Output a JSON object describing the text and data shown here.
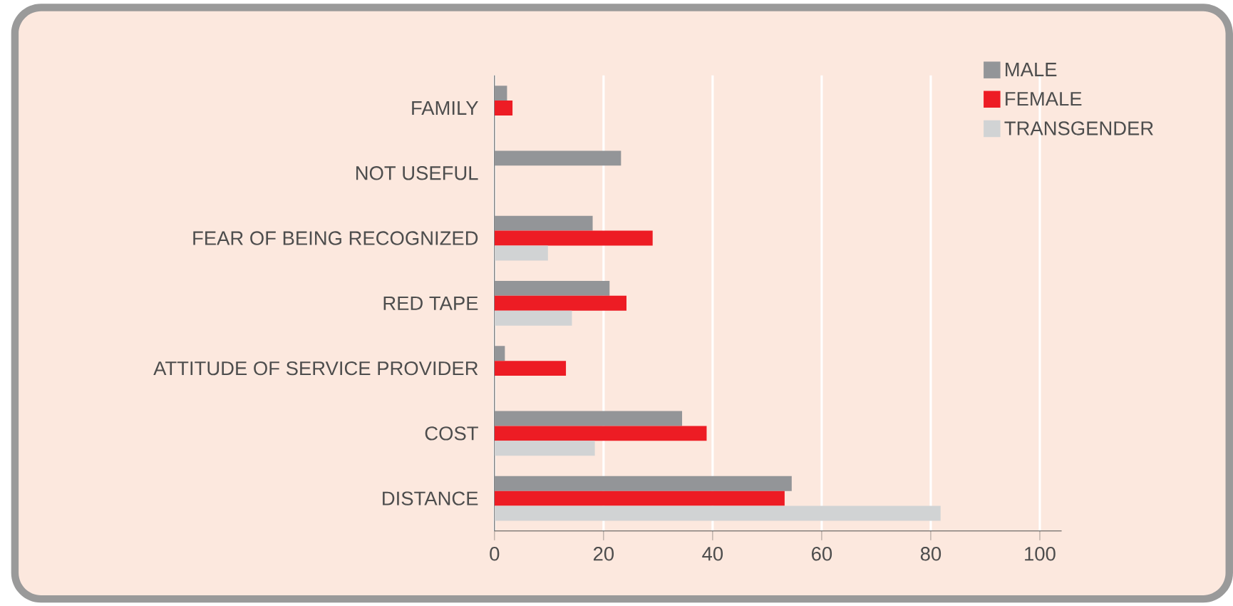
{
  "chart_data": {
    "type": "bar",
    "orientation": "horizontal",
    "categories": [
      "FAMILY",
      "NOT USEFUL",
      "FEAR OF BEING RECOGNIZED",
      "RED TAPE",
      "ATTITUDE OF SERVICE PROVIDER",
      "COST",
      "DISTANCE"
    ],
    "series": [
      {
        "name": "MALE",
        "color": "#939598",
        "values": [
          2.3,
          23.2,
          18.0,
          21.1,
          1.9,
          34.4,
          54.5
        ]
      },
      {
        "name": "FEMALE",
        "color": "#ed1c24",
        "values": [
          3.3,
          null,
          29.0,
          24.2,
          13.1,
          38.9,
          53.2
        ]
      },
      {
        "name": "TRANSGENDER",
        "color": "#d1d3d4",
        "values": [
          null,
          null,
          9.8,
          14.2,
          null,
          18.4,
          81.8
        ]
      }
    ],
    "xlim": [
      0,
      104
    ],
    "xticks": [
      0,
      20,
      40,
      60,
      80,
      100
    ],
    "grid": "x",
    "legend": "top right"
  }
}
